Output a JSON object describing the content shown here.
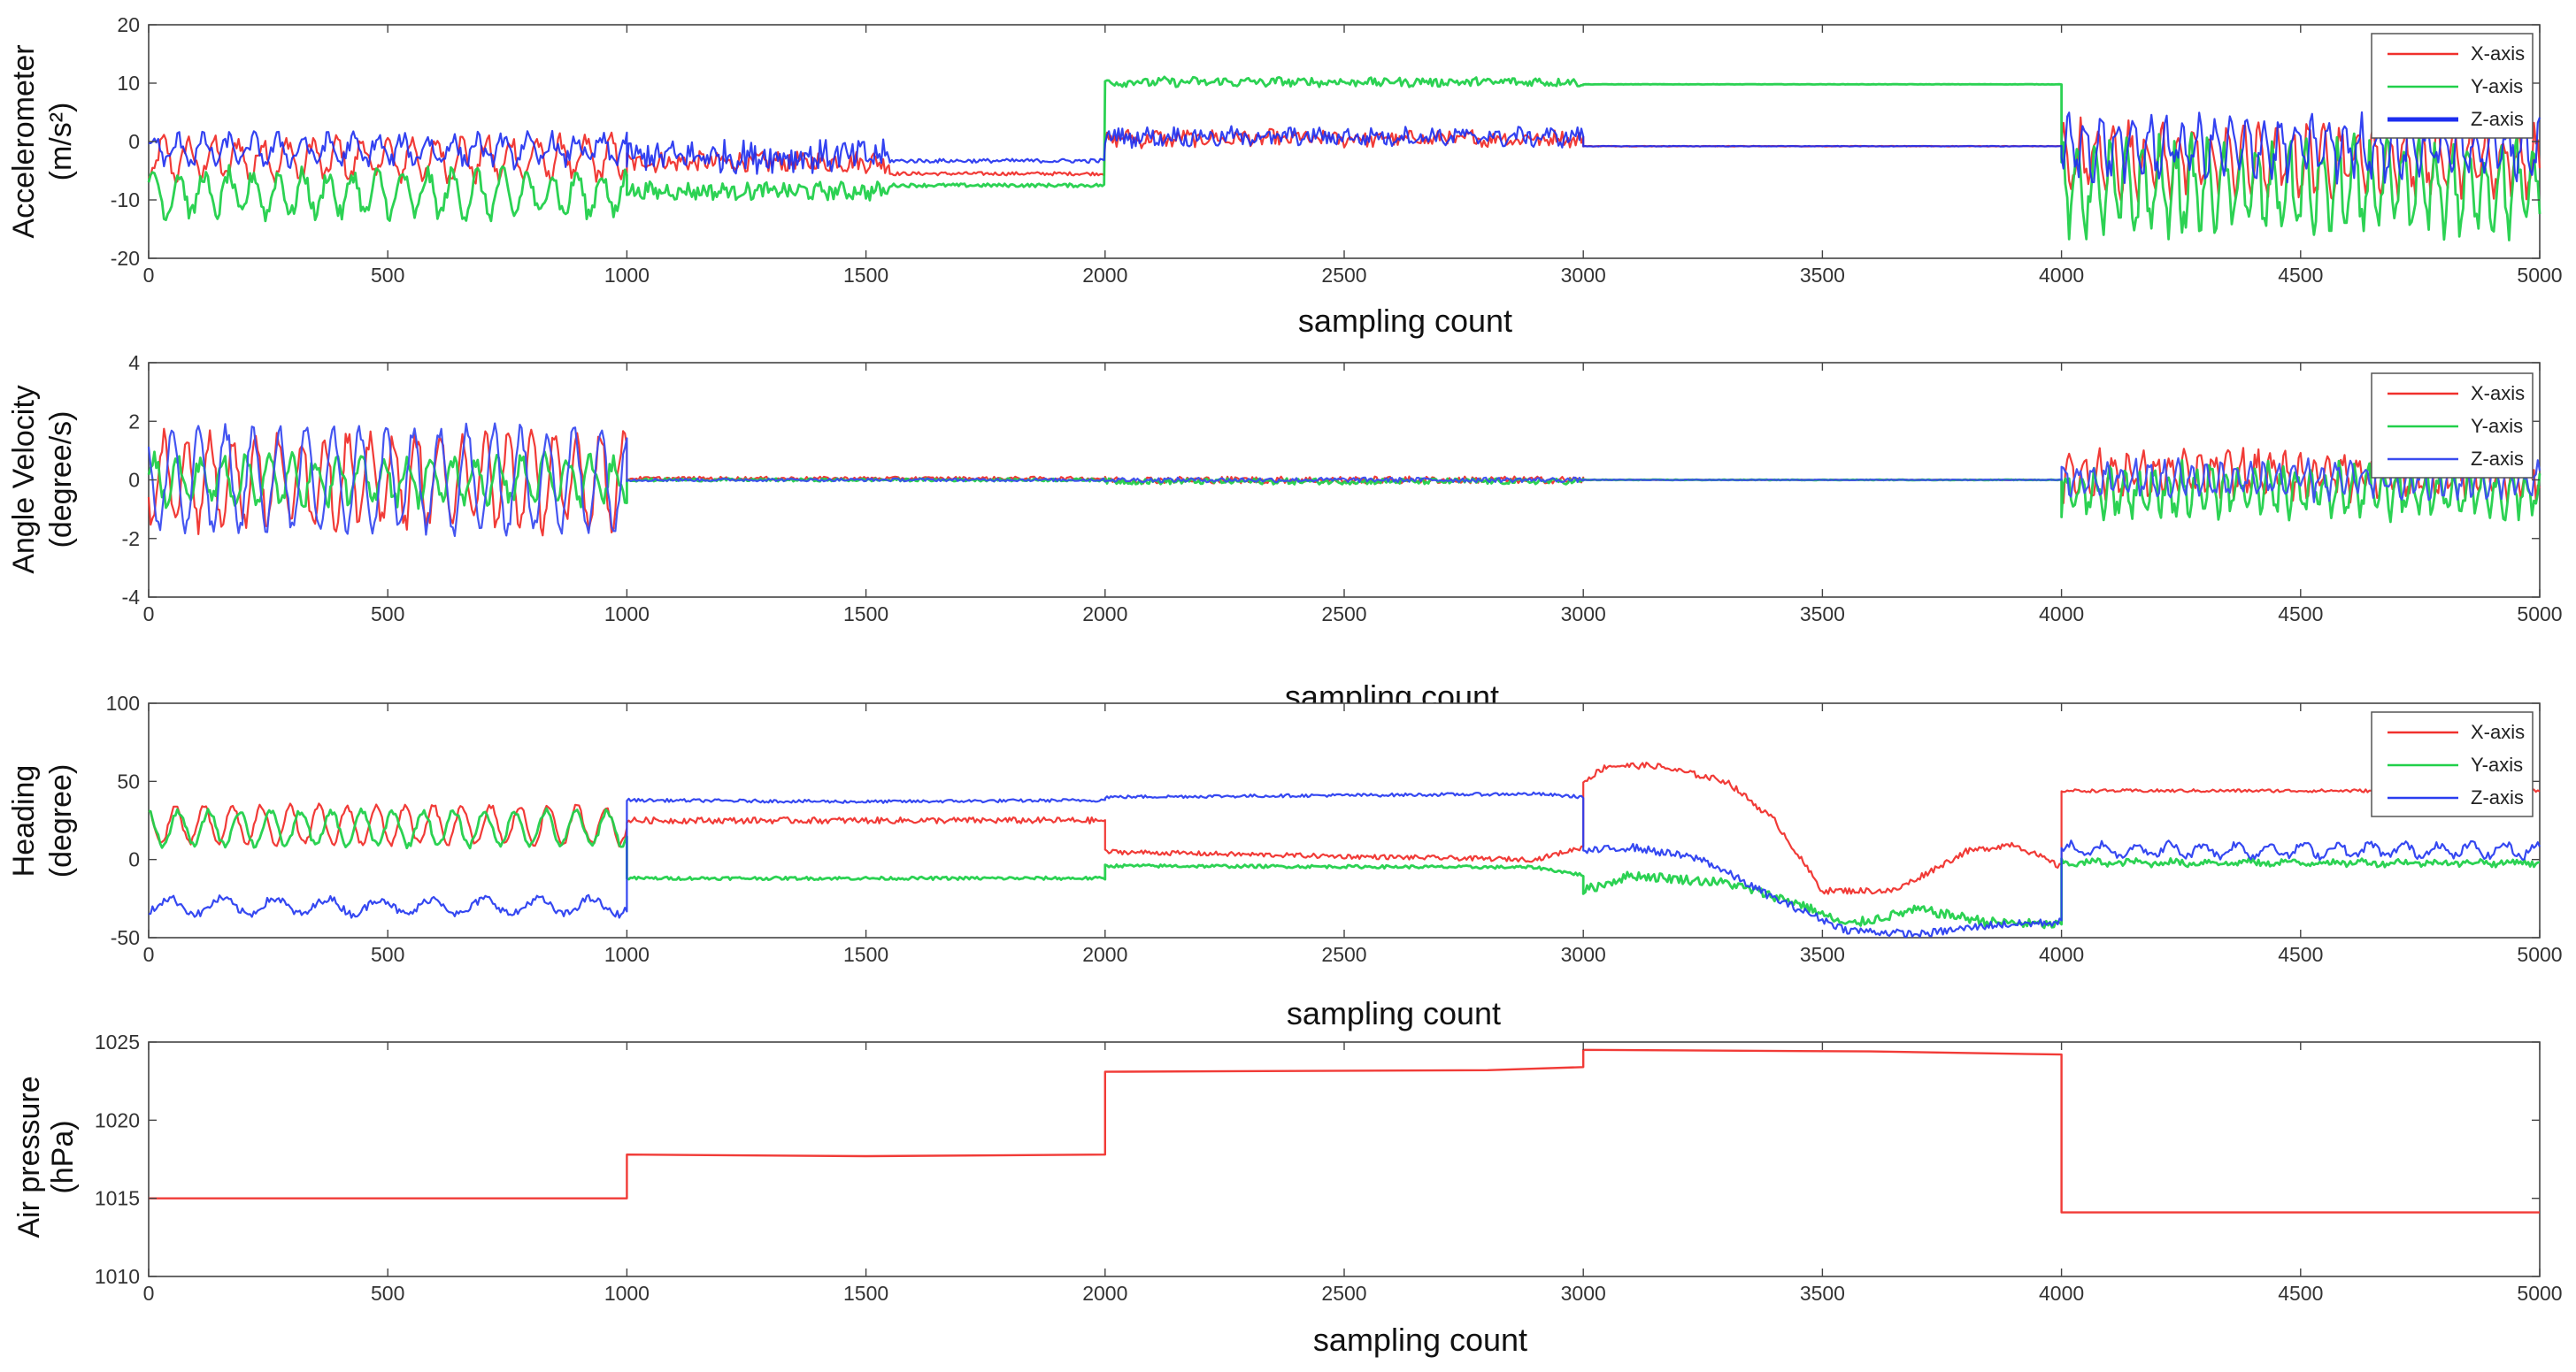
{
  "figure": {
    "description_free": true
  },
  "chart_data": [
    {
      "type": "line",
      "id": "accel",
      "ylabel_lines": [
        "Accelerometer",
        "(m/s²)"
      ],
      "xlabel": "sampling count",
      "xlim": [
        0,
        5000
      ],
      "ylim": [
        -20,
        20
      ],
      "xticks": [
        0,
        500,
        1000,
        1500,
        2000,
        2500,
        3000,
        3500,
        4000,
        4500,
        5000
      ],
      "yticks": [
        -20,
        -10,
        0,
        10,
        20
      ],
      "legend_position": "top-right",
      "series": [
        {
          "name": "X-axis",
          "color": "#f0302c",
          "width": 2.2,
          "pattern": "noisy",
          "segments": [
            {
              "x0": 0,
              "x1": 1000,
              "base": -3,
              "amp": 3.2,
              "noise": 1.5,
              "period": 52
            },
            {
              "x0": 1000,
              "x1": 1550,
              "base": -3.5,
              "amp": 0.4,
              "noise": 1.6,
              "period": 40
            },
            {
              "x0": 1550,
              "x1": 2000,
              "base": -5.5,
              "amp": 0,
              "noise": 0.3,
              "period": 40
            },
            {
              "x0": 2000,
              "x1": 3000,
              "base": 0.5,
              "amp": 0.5,
              "noise": 1.2,
              "period": 60
            },
            {
              "x0": 3000,
              "x1": 4000,
              "base": -0.8,
              "amp": 0,
              "noise": 0.05,
              "period": 60
            },
            {
              "x0": 4000,
              "x1": 5000,
              "base": -3,
              "amp": 5,
              "noise": 2.5,
              "period": 34
            }
          ]
        },
        {
          "name": "Y-axis",
          "color": "#21d04a",
          "width": 2.8,
          "pattern": "noisy",
          "segments": [
            {
              "x0": 0,
              "x1": 1000,
              "base": -9,
              "amp": 3.5,
              "noise": 1.5,
              "period": 52
            },
            {
              "x0": 1000,
              "x1": 1550,
              "base": -8.5,
              "amp": 0.4,
              "noise": 1.3,
              "period": 40
            },
            {
              "x0": 1550,
              "x1": 2000,
              "base": -7.5,
              "amp": 0,
              "noise": 0.3,
              "period": 40
            },
            {
              "x0": 2000,
              "x1": 3000,
              "base": 10.2,
              "amp": 0.2,
              "noise": 0.7,
              "period": 60
            },
            {
              "x0": 3000,
              "x1": 4000,
              "base": 9.8,
              "amp": 0,
              "noise": 0.03,
              "period": 60
            },
            {
              "x0": 4000,
              "x1": 5000,
              "base": -8,
              "amp": 6.5,
              "noise": 3,
              "period": 34
            }
          ]
        },
        {
          "name": "Z-axis",
          "color": "#1d2ef0",
          "width": 2.2,
          "pattern": "noisy",
          "segments": [
            {
              "x0": 0,
              "x1": 1000,
              "base": -1.5,
              "amp": 2,
              "noise": 1.4,
              "period": 52
            },
            {
              "x0": 1000,
              "x1": 1550,
              "base": -2.5,
              "amp": 0.5,
              "noise": 2.6,
              "period": 40
            },
            {
              "x0": 1550,
              "x1": 2000,
              "base": -3.3,
              "amp": 0,
              "noise": 0.35,
              "period": 40
            },
            {
              "x0": 2000,
              "x1": 3000,
              "base": 0.8,
              "amp": 0.6,
              "noise": 1.3,
              "period": 60
            },
            {
              "x0": 3000,
              "x1": 4000,
              "base": -0.8,
              "amp": 0,
              "noise": 0.05,
              "period": 60
            },
            {
              "x0": 4000,
              "x1": 5000,
              "base": -1,
              "amp": 4,
              "noise": 2.5,
              "period": 34
            }
          ]
        }
      ]
    },
    {
      "type": "line",
      "id": "gyro",
      "ylabel_lines": [
        "Angle Velocity",
        "(degree/s)"
      ],
      "xlabel": "sampling count",
      "xlim": [
        0,
        5000
      ],
      "ylim": [
        -4,
        4
      ],
      "xticks": [
        0,
        500,
        1000,
        1500,
        2000,
        2500,
        3000,
        3500,
        4000,
        4500,
        5000
      ],
      "yticks": [
        -4,
        -2,
        0,
        2,
        4
      ],
      "legend_position": "top-right",
      "series": [
        {
          "name": "X-axis",
          "color": "#f0302c",
          "width": 2.2,
          "pattern": "noisy",
          "segments": [
            {
              "x0": 0,
              "x1": 1000,
              "base": 0,
              "amp": 1.5,
              "noise": 0.4,
              "period": 48
            },
            {
              "x0": 1000,
              "x1": 2000,
              "base": 0.05,
              "amp": 0,
              "noise": 0.06,
              "period": 48
            },
            {
              "x0": 2000,
              "x1": 3000,
              "base": 0,
              "amp": 0,
              "noise": 0.12,
              "period": 48
            },
            {
              "x0": 3000,
              "x1": 4000,
              "base": 0,
              "amp": 0,
              "noise": 0.01,
              "period": 48
            },
            {
              "x0": 4000,
              "x1": 5000,
              "base": 0.2,
              "amp": 0.6,
              "noise": 0.4,
              "period": 30
            }
          ]
        },
        {
          "name": "Y-axis",
          "color": "#21d04a",
          "width": 2.8,
          "pattern": "noisy",
          "segments": [
            {
              "x0": 0,
              "x1": 1000,
              "base": 0,
              "amp": 0.7,
              "noise": 0.3,
              "period": 48
            },
            {
              "x0": 1000,
              "x1": 2000,
              "base": 0,
              "amp": 0,
              "noise": 0.05,
              "period": 48
            },
            {
              "x0": 2000,
              "x1": 3000,
              "base": -0.05,
              "amp": 0,
              "noise": 0.1,
              "period": 48
            },
            {
              "x0": 3000,
              "x1": 4000,
              "base": 0,
              "amp": 0,
              "noise": 0.01,
              "period": 48
            },
            {
              "x0": 4000,
              "x1": 5000,
              "base": -0.4,
              "amp": 0.7,
              "noise": 0.4,
              "period": 30
            }
          ]
        },
        {
          "name": "Z-axis",
          "color": "#3a4cf0",
          "width": 2.2,
          "pattern": "noisy",
          "segments": [
            {
              "x0": 0,
              "x1": 1000,
              "base": 0,
              "amp": 1.7,
              "noise": 0.3,
              "period": 56
            },
            {
              "x0": 1000,
              "x1": 2000,
              "base": 0,
              "amp": 0,
              "noise": 0.05,
              "period": 56
            },
            {
              "x0": 2000,
              "x1": 3000,
              "base": 0,
              "amp": 0,
              "noise": 0.08,
              "period": 56
            },
            {
              "x0": 3000,
              "x1": 4000,
              "base": 0,
              "amp": 0,
              "noise": 0.01,
              "period": 56
            },
            {
              "x0": 4000,
              "x1": 5000,
              "base": 0,
              "amp": 0.5,
              "noise": 0.3,
              "period": 30
            }
          ]
        }
      ]
    },
    {
      "type": "line",
      "id": "heading",
      "ylabel_lines": [
        "Heading",
        "(degree)"
      ],
      "xlabel": "sampling count",
      "xlim": [
        0,
        5000
      ],
      "ylim": [
        -50,
        100
      ],
      "xticks": [
        0,
        500,
        1000,
        1500,
        2000,
        2500,
        3000,
        3500,
        4000,
        4500,
        5000
      ],
      "yticks": [
        -50,
        0,
        50,
        100
      ],
      "legend_position": "top-right",
      "series": [
        {
          "name": "X-axis",
          "color": "#f0302c",
          "width": 2.2,
          "pattern": "keypoints",
          "segments": [
            {
              "x0": 0,
              "x1": 1000,
              "base": 22,
              "amp": 12,
              "noise": 2,
              "period": 60
            },
            {
              "x0": 1000,
              "x1": 2000,
              "base": 25,
              "amp": 0,
              "noise": 2,
              "period": 60
            },
            {
              "x0": 2000,
              "x1": 3000,
              "points": [
                [
                  2000,
                  5
                ],
                [
                  2500,
                  2
                ],
                [
                  2900,
                  0
                ],
                [
                  3000,
                  8
                ]
              ],
              "noise": 1.5
            },
            {
              "x0": 3000,
              "x1": 4000,
              "points": [
                [
                  3000,
                  50
                ],
                [
                  3050,
                  60
                ],
                [
                  3150,
                  60
                ],
                [
                  3300,
                  50
                ],
                [
                  3400,
                  25
                ],
                [
                  3500,
                  -20
                ],
                [
                  3650,
                  -20
                ],
                [
                  3800,
                  5
                ],
                [
                  3900,
                  10
                ],
                [
                  4000,
                  -5
                ]
              ],
              "noise": 2
            },
            {
              "x0": 4000,
              "x1": 5000,
              "base": 44,
              "amp": 0,
              "noise": 1,
              "period": 60
            }
          ]
        },
        {
          "name": "Y-axis",
          "color": "#21d04a",
          "width": 2.8,
          "pattern": "keypoints",
          "segments": [
            {
              "x0": 0,
              "x1": 1000,
              "base": 20,
              "amp": 11,
              "noise": 2,
              "period": 64
            },
            {
              "x0": 1000,
              "x1": 2000,
              "base": -12,
              "amp": 0,
              "noise": 1,
              "period": 64
            },
            {
              "x0": 2000,
              "x1": 3000,
              "points": [
                [
                  2000,
                  -4
                ],
                [
                  2900,
                  -5
                ],
                [
                  3000,
                  -10
                ]
              ],
              "noise": 1
            },
            {
              "x0": 3000,
              "x1": 4000,
              "points": [
                [
                  3000,
                  -20
                ],
                [
                  3100,
                  -10
                ],
                [
                  3300,
                  -15
                ],
                [
                  3450,
                  -28
                ],
                [
                  3550,
                  -42
                ],
                [
                  3700,
                  -32
                ],
                [
                  3850,
                  -40
                ],
                [
                  4000,
                  -42
                ]
              ],
              "noise": 3
            },
            {
              "x0": 4000,
              "x1": 5000,
              "base": -2,
              "amp": 1,
              "noise": 2,
              "period": 80
            }
          ]
        },
        {
          "name": "Z-axis",
          "color": "#2a3ef0",
          "width": 2.2,
          "pattern": "keypoints",
          "segments": [
            {
              "x0": 0,
              "x1": 1000,
              "base": -30,
              "amp": 5,
              "noise": 2.5,
              "period": 110
            },
            {
              "x0": 1000,
              "x1": 2000,
              "points": [
                [
                  1000,
                  38
                ],
                [
                  1500,
                  37
                ],
                [
                  2000,
                  38
                ]
              ],
              "noise": 1
            },
            {
              "x0": 2000,
              "x1": 3000,
              "points": [
                [
                  2000,
                  40
                ],
                [
                  2900,
                  42
                ],
                [
                  3000,
                  40
                ]
              ],
              "noise": 1
            },
            {
              "x0": 3000,
              "x1": 4000,
              "points": [
                [
                  3000,
                  5
                ],
                [
                  3100,
                  8
                ],
                [
                  3250,
                  0
                ],
                [
                  3400,
                  -25
                ],
                [
                  3550,
                  -45
                ],
                [
                  3700,
                  -48
                ],
                [
                  3850,
                  -42
                ],
                [
                  4000,
                  -40
                ]
              ],
              "noise": 2.5
            },
            {
              "x0": 4000,
              "x1": 5000,
              "base": 6,
              "amp": 4,
              "noise": 2.5,
              "period": 70
            }
          ]
        }
      ]
    },
    {
      "type": "line",
      "id": "pressure",
      "ylabel_lines": [
        "Air pressure",
        "(hPa)"
      ],
      "xlabel": "sampling count",
      "xlim": [
        0,
        5000
      ],
      "ylim": [
        1010,
        1025
      ],
      "xticks": [
        0,
        500,
        1000,
        1500,
        2000,
        2500,
        3000,
        3500,
        4000,
        4500,
        5000
      ],
      "yticks": [
        1010,
        1015,
        1020,
        1025
      ],
      "legend_position": "none",
      "series": [
        {
          "name": "Air pressure",
          "color": "#f0302c",
          "width": 2.4,
          "pattern": "step",
          "points": [
            [
              0,
              1015
            ],
            [
              1000,
              1015
            ],
            [
              1000,
              1017.8
            ],
            [
              1500,
              1017.7
            ],
            [
              2000,
              1017.8
            ],
            [
              2000,
              1023.1
            ],
            [
              2800,
              1023.2
            ],
            [
              3000,
              1023.4
            ],
            [
              3000,
              1024.5
            ],
            [
              3600,
              1024.4
            ],
            [
              4000,
              1024.2
            ],
            [
              4000,
              1014.1
            ],
            [
              5000,
              1014.1
            ]
          ]
        }
      ]
    }
  ]
}
